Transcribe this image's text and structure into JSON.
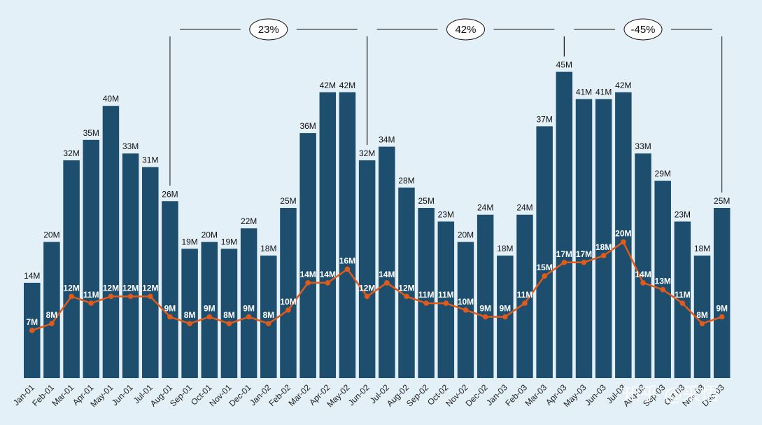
{
  "chart_data": {
    "type": "bar+line",
    "categories": [
      "Jan-01",
      "Feb-01",
      "Mar-01",
      "Apr-01",
      "May-01",
      "Jun-01",
      "Jul-01",
      "Aug-01",
      "Sep-01",
      "Oct-01",
      "Nov-01",
      "Dec-01",
      "Jan-02",
      "Feb-02",
      "Mar-02",
      "Apr-02",
      "May-02",
      "Jun-02",
      "Jul-02",
      "Aug-02",
      "Sep-02",
      "Oct-02",
      "Nov-02",
      "Dec-02",
      "Jan-03",
      "Feb-03",
      "Mar-03",
      "Apr-03",
      "May-03",
      "Jun-03",
      "Jul-03",
      "Aug-03",
      "Sep-03",
      "Oct-03",
      "Nov-03",
      "Dec-03"
    ],
    "series": [
      {
        "name": "bars",
        "type": "bar",
        "color": "#1d4e6e",
        "values": [
          14,
          20,
          32,
          35,
          40,
          33,
          31,
          26,
          19,
          20,
          19,
          22,
          18,
          25,
          36,
          42,
          42,
          32,
          34,
          28,
          25,
          23,
          20,
          24,
          18,
          24,
          37,
          45,
          41,
          41,
          42,
          33,
          29,
          23,
          18,
          25
        ]
      },
      {
        "name": "line",
        "type": "line",
        "color": "#e05a1a",
        "values": [
          7,
          8,
          12,
          11,
          12,
          12,
          12,
          9,
          8,
          9,
          8,
          9,
          8,
          10,
          14,
          14,
          16,
          12,
          14,
          12,
          11,
          11,
          10,
          9,
          9,
          11,
          15,
          17,
          17,
          18,
          20,
          14,
          13,
          11,
          8,
          9
        ]
      }
    ],
    "unit_suffix": "M",
    "ylim": [
      0,
      50
    ],
    "annotations": [
      {
        "from": "Aug-01",
        "to": "Jun-02",
        "label": "23%"
      },
      {
        "from": "Jun-02",
        "to": "Apr-03",
        "label": "42%"
      },
      {
        "from": "Apr-03",
        "to": "Dec-03",
        "label": "-45%"
      }
    ]
  },
  "watermark": "知乎 @采悟"
}
